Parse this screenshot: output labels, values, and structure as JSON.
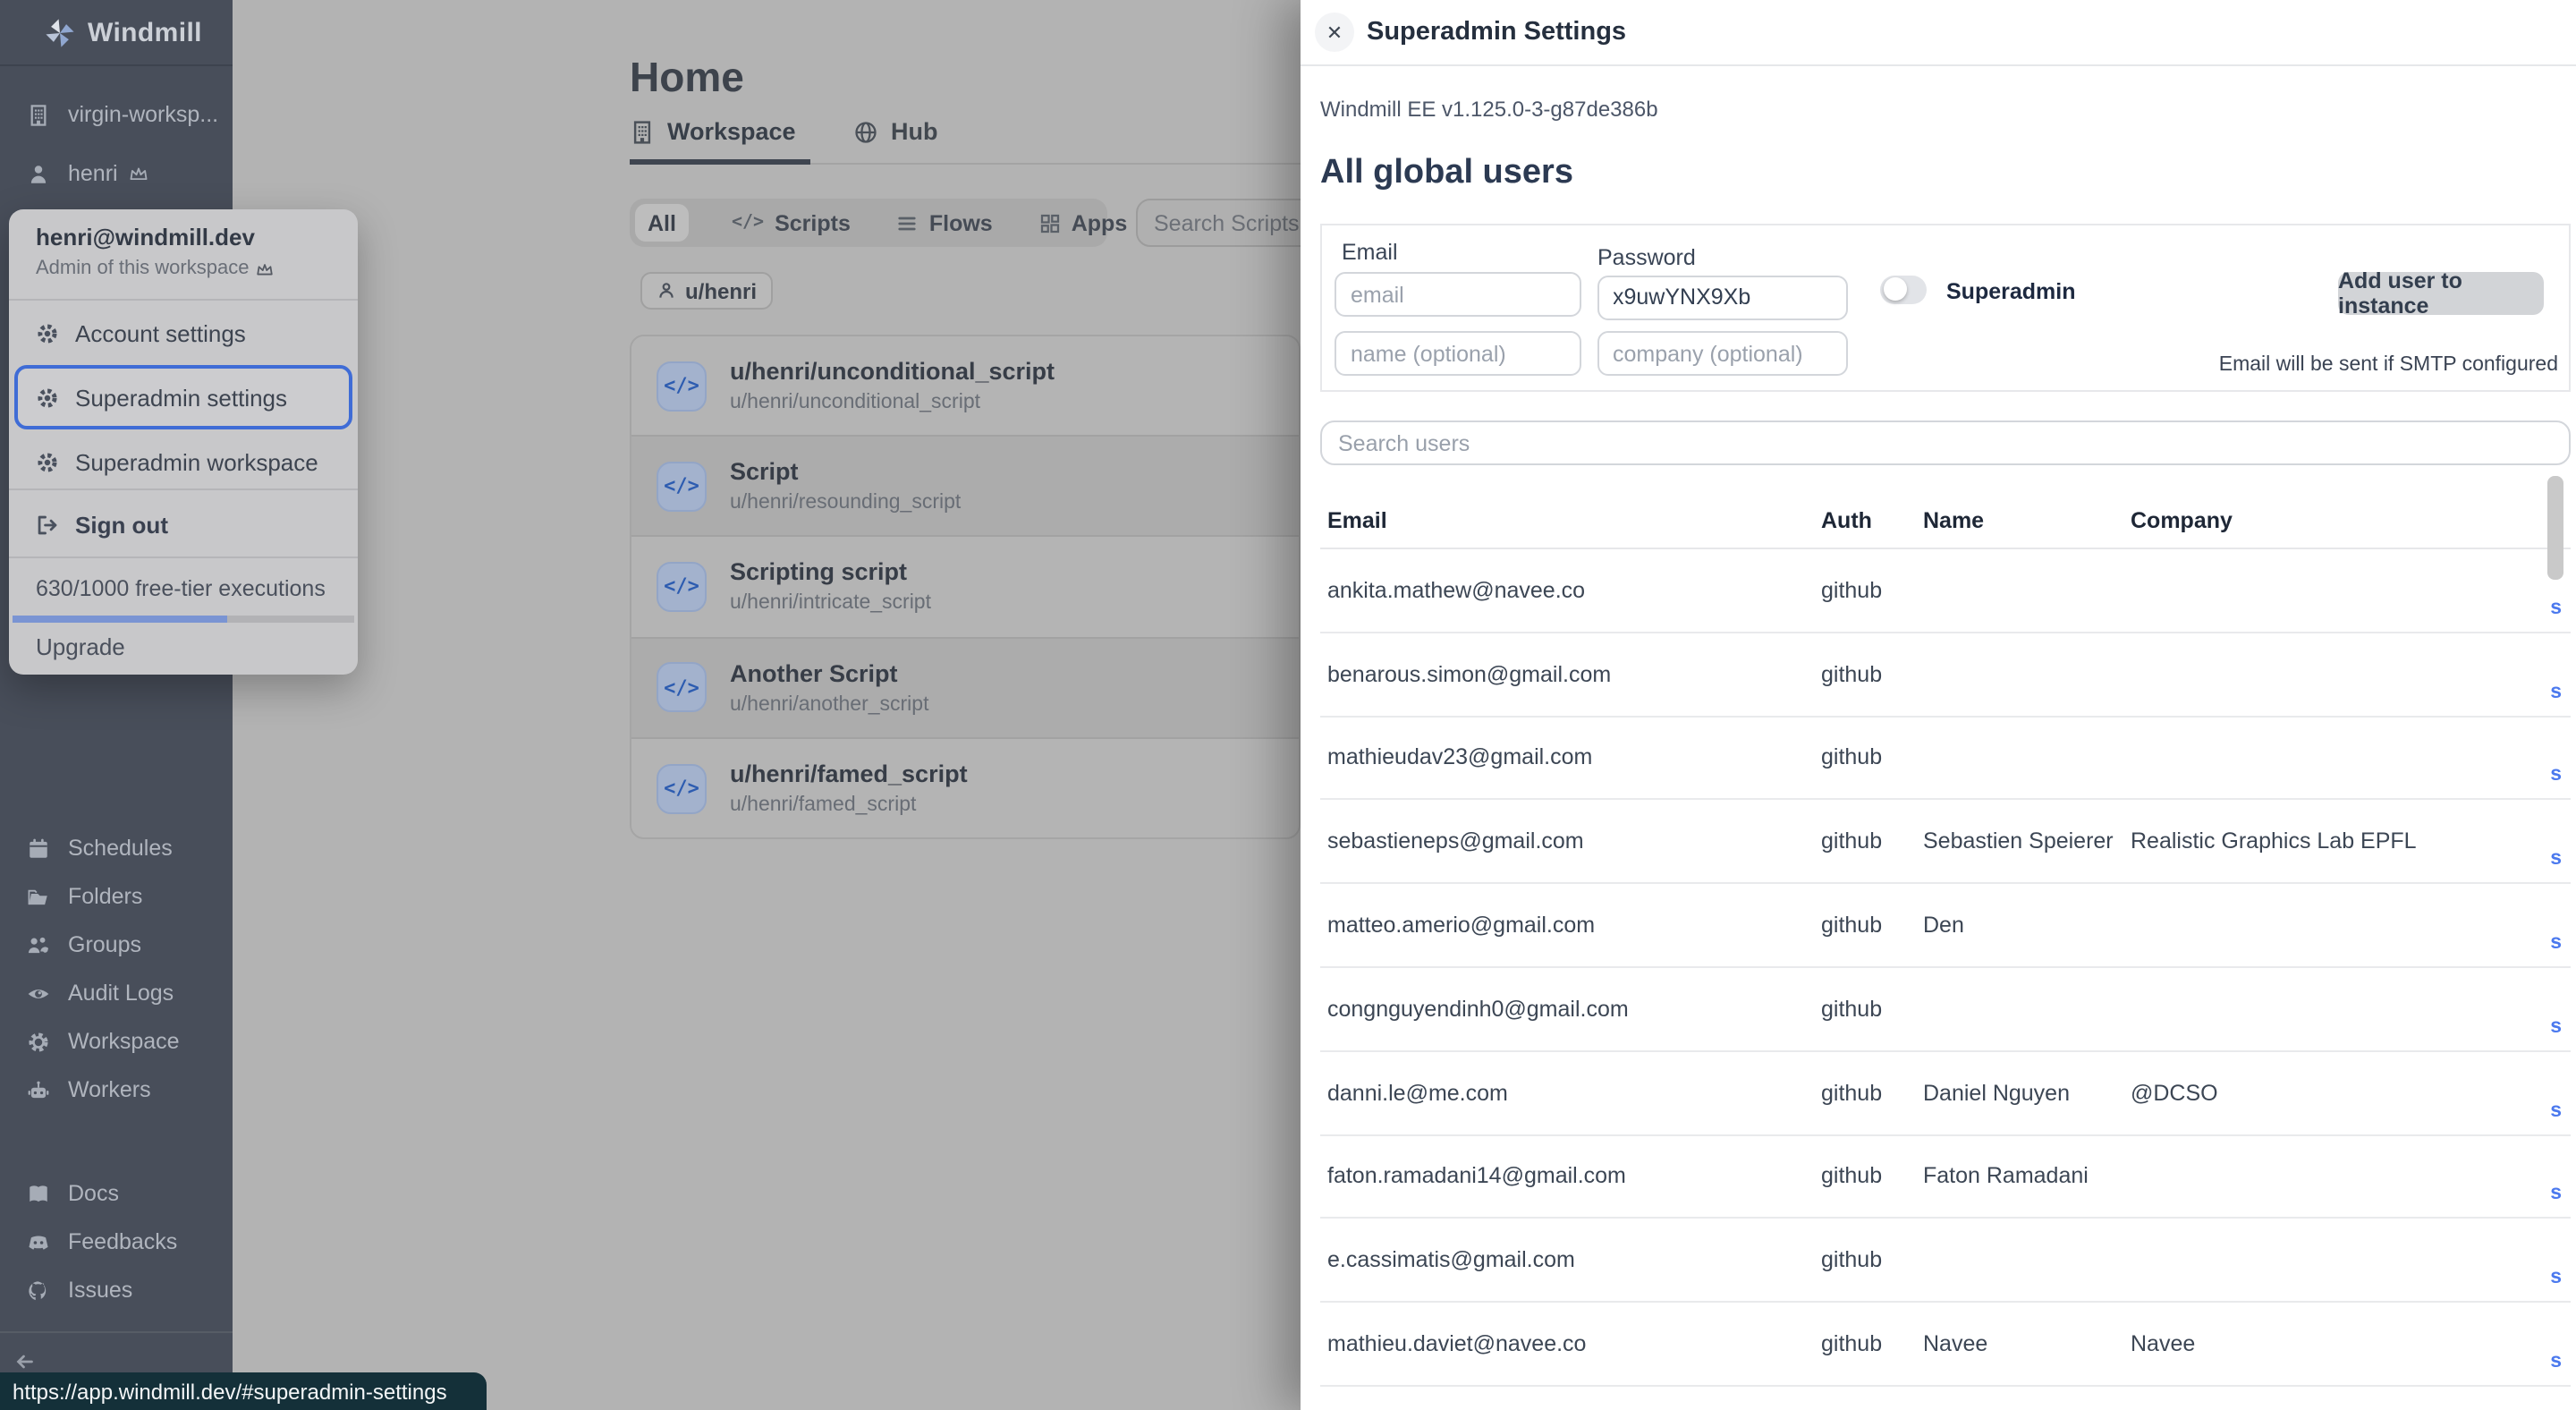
{
  "colors": {
    "accent_blue": "#4b79ee",
    "focus_ring": "#3f6cd6",
    "progress_fill": "#7a94d3",
    "sidebar_bg": "#484e5a",
    "statusbar_bg": "#143039"
  },
  "sidebar": {
    "logo_text": "Windmill",
    "workspace_name": "virgin-worksp...",
    "username": "henri",
    "nav_items": [
      {
        "label": "Schedules",
        "icon": "calendar-icon"
      },
      {
        "label": "Folders",
        "icon": "folder-icon"
      },
      {
        "label": "Groups",
        "icon": "groups-icon"
      },
      {
        "label": "Audit Logs",
        "icon": "eye-icon"
      },
      {
        "label": "Workspace",
        "icon": "gear-icon"
      },
      {
        "label": "Workers",
        "icon": "robot-icon"
      }
    ],
    "footer_items": [
      {
        "label": "Docs",
        "icon": "book-icon"
      },
      {
        "label": "Feedbacks",
        "icon": "discord-icon"
      },
      {
        "label": "Issues",
        "icon": "github-icon"
      }
    ]
  },
  "user_menu": {
    "email": "henri@windmill.dev",
    "role": "Admin of this workspace",
    "account_settings": "Account settings",
    "superadmin_settings": "Superadmin settings",
    "superadmin_workspace": "Superadmin workspace",
    "sign_out": "Sign out",
    "usage": "630/1000 free-tier executions",
    "usage_percent": 63,
    "upgrade": "Upgrade"
  },
  "main": {
    "title": "Home",
    "tabs": [
      {
        "label": "Workspace"
      },
      {
        "label": "Hub"
      }
    ],
    "filters": {
      "all": "All",
      "scripts": "Scripts",
      "flows": "Flows",
      "apps": "Apps"
    },
    "scripts_icon_glyph": "</>",
    "search_placeholder": "Search Scripts,",
    "owner_chip": "u/henri",
    "scripts": [
      {
        "title": "u/henri/unconditional_script",
        "path": "u/henri/unconditional_script"
      },
      {
        "title": "Script",
        "path": "u/henri/resounding_script"
      },
      {
        "title": "Scripting script",
        "path": "u/henri/intricate_script"
      },
      {
        "title": "Another Script",
        "path": "u/henri/another_script"
      },
      {
        "title": "u/henri/famed_script",
        "path": "u/henri/famed_script"
      }
    ]
  },
  "drawer": {
    "title": "Superadmin Settings",
    "close_glyph": "✕",
    "version": "Windmill EE v1.125.0-3-g87de386b",
    "heading": "All global users",
    "form": {
      "email_label": "Email",
      "email_placeholder": "email",
      "password_label": "Password",
      "password_value": "x9uwYNX9Xb",
      "superadmin_label": "Superadmin",
      "add_button": "Add user to instance",
      "name_placeholder": "name (optional)",
      "company_placeholder": "company (optional)",
      "smtp_note": "Email will be sent if SMTP configured"
    },
    "search_placeholder": "Search users",
    "table": {
      "headers": [
        "Email",
        "Auth",
        "Name",
        "Company"
      ],
      "action_label": "s",
      "rows": [
        {
          "email": "ankita.mathew@navee.co",
          "auth": "github",
          "name": "",
          "company": ""
        },
        {
          "email": "benarous.simon@gmail.com",
          "auth": "github",
          "name": "",
          "company": ""
        },
        {
          "email": "mathieudav23@gmail.com",
          "auth": "github",
          "name": "",
          "company": ""
        },
        {
          "email": "sebastieneps@gmail.com",
          "auth": "github",
          "name": "Sebastien Speierer",
          "company": "Realistic Graphics Lab EPFL"
        },
        {
          "email": "matteo.amerio@gmail.com",
          "auth": "github",
          "name": "Den",
          "company": ""
        },
        {
          "email": "congnguyendinh0@gmail.com",
          "auth": "github",
          "name": "",
          "company": ""
        },
        {
          "email": "danni.le@me.com",
          "auth": "github",
          "name": "Daniel Nguyen",
          "company": "@DCSO"
        },
        {
          "email": "faton.ramadani14@gmail.com",
          "auth": "github",
          "name": "Faton Ramadani",
          "company": ""
        },
        {
          "email": "e.cassimatis@gmail.com",
          "auth": "github",
          "name": "",
          "company": ""
        },
        {
          "email": "mathieu.daviet@navee.co",
          "auth": "github",
          "name": "Navee",
          "company": "Navee"
        }
      ]
    }
  },
  "statusbar": {
    "url": "https://app.windmill.dev/#superadmin-settings"
  }
}
